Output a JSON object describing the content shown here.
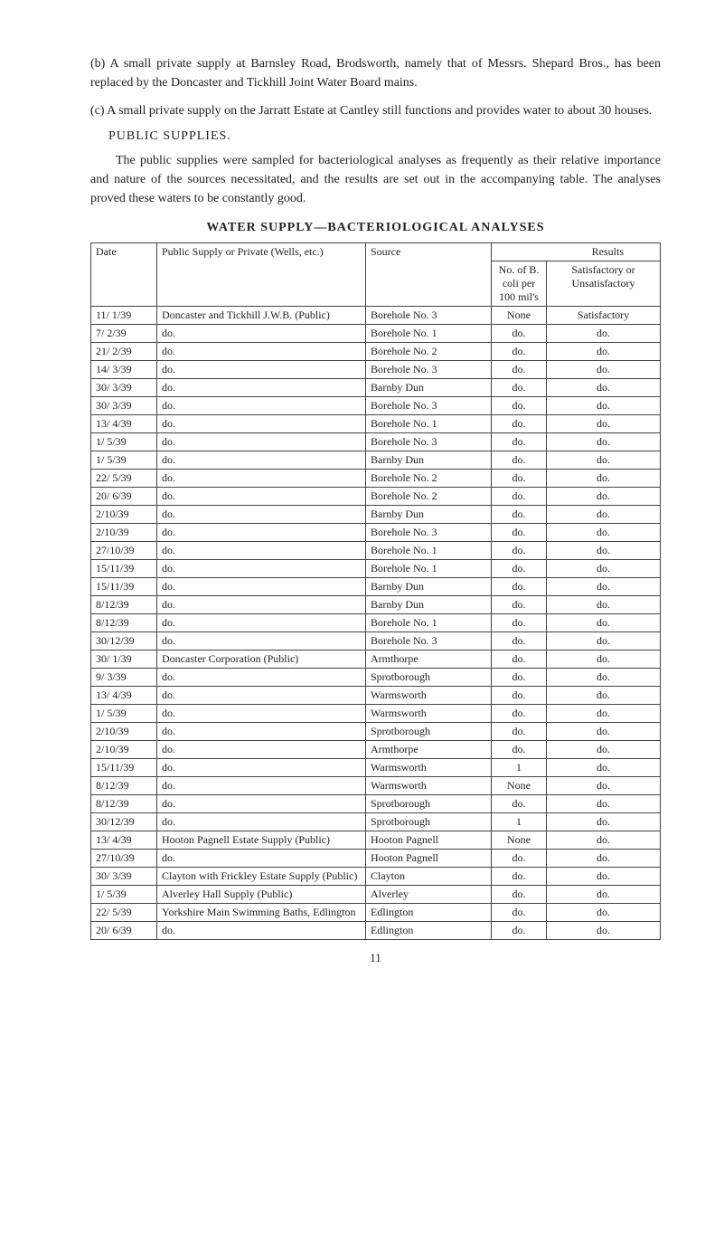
{
  "paragraphs": {
    "b": "(b) A small private supply at Barnsley Road, Brodsworth, namely that of Messrs. Shepard Bros., has been replaced by the Doncaster and Tickhill Joint Water Board mains.",
    "c": "(c) A small private supply on the Jarratt Estate at Cantley still functions and provides water to about 30 houses.",
    "public_head": "PUBLIC SUPPLIES.",
    "public_body": "The public supplies were sampled for bacteriological analyses as frequently as their relative importance and nature of the sources necessitated, and the results are set out in the accompanying table. The analyses proved these waters to be constantly good."
  },
  "table": {
    "title": "WATER SUPPLY—BACTERIOLOGICAL ANALYSES",
    "headers": {
      "date": "Date",
      "supply": "Public Supply or Private (Wells, etc.)",
      "source": "Source",
      "results": "Results",
      "no": "No. of B. coli per 100 mil's",
      "sat": "Satisfactory or Unsatisfactory"
    },
    "rows": [
      {
        "date": "11/ 1/39",
        "supply": "Doncaster and Tickhill J.W.B. (Public)",
        "source": "Borehole No. 3",
        "no": "None",
        "sat": "Satisfactory"
      },
      {
        "date": "7/ 2/39",
        "supply": "do.",
        "source": "Borehole No. 1",
        "no": "do.",
        "sat": "do."
      },
      {
        "date": "21/ 2/39",
        "supply": "do.",
        "source": "Borehole No. 2",
        "no": "do.",
        "sat": "do."
      },
      {
        "date": "14/ 3/39",
        "supply": "do.",
        "source": "Borehole No. 3",
        "no": "do.",
        "sat": "do."
      },
      {
        "date": "30/ 3/39",
        "supply": "do.",
        "source": "Barnby Dun",
        "no": "do.",
        "sat": "do."
      },
      {
        "date": "30/ 3/39",
        "supply": "do.",
        "source": "Borehole No. 3",
        "no": "do.",
        "sat": "do."
      },
      {
        "date": "13/ 4/39",
        "supply": "do.",
        "source": "Borehole No. 1",
        "no": "do.",
        "sat": "do."
      },
      {
        "date": "1/ 5/39",
        "supply": "do.",
        "source": "Borehole No. 3",
        "no": "do.",
        "sat": "do."
      },
      {
        "date": "1/ 5/39",
        "supply": "do.",
        "source": "Barnby Dun",
        "no": "do.",
        "sat": "do."
      },
      {
        "date": "22/ 5/39",
        "supply": "do.",
        "source": "Borehole No. 2",
        "no": "do.",
        "sat": "do."
      },
      {
        "date": "20/ 6/39",
        "supply": "do.",
        "source": "Borehole No. 2",
        "no": "do.",
        "sat": "do."
      },
      {
        "date": "2/10/39",
        "supply": "do.",
        "source": "Barnby Dun",
        "no": "do.",
        "sat": "do."
      },
      {
        "date": "2/10/39",
        "supply": "do.",
        "source": "Borehole No. 3",
        "no": "do.",
        "sat": "do."
      },
      {
        "date": "27/10/39",
        "supply": "do.",
        "source": "Borehole No. 1",
        "no": "do.",
        "sat": "do."
      },
      {
        "date": "15/11/39",
        "supply": "do.",
        "source": "Borehole No. 1",
        "no": "do.",
        "sat": "do."
      },
      {
        "date": "15/11/39",
        "supply": "do.",
        "source": "Barnby Dun",
        "no": "do.",
        "sat": "do."
      },
      {
        "date": "8/12/39",
        "supply": "do.",
        "source": "Barnby Dun",
        "no": "do.",
        "sat": "do."
      },
      {
        "date": "8/12/39",
        "supply": "do.",
        "source": "Borehole No. 1",
        "no": "do.",
        "sat": "do."
      },
      {
        "date": "30/12/39",
        "supply": "do.",
        "source": "Borehole No. 3",
        "no": "do.",
        "sat": "do."
      },
      {
        "date": "30/ 1/39",
        "supply": "Doncaster Corporation (Public)",
        "source": "Armthorpe",
        "no": "do.",
        "sat": "do."
      },
      {
        "date": "9/ 3/39",
        "supply": "do.",
        "source": "Sprotborough",
        "no": "do.",
        "sat": "do."
      },
      {
        "date": "13/ 4/39",
        "supply": "do.",
        "source": "Warmsworth",
        "no": "do.",
        "sat": "do."
      },
      {
        "date": "1/ 5/39",
        "supply": "do.",
        "source": "Warmsworth",
        "no": "do.",
        "sat": "do."
      },
      {
        "date": "2/10/39",
        "supply": "do.",
        "source": "Sprotborough",
        "no": "do.",
        "sat": "do."
      },
      {
        "date": "2/10/39",
        "supply": "do.",
        "source": "Armthorpe",
        "no": "do.",
        "sat": "do."
      },
      {
        "date": "15/11/39",
        "supply": "do.",
        "source": "Warmsworth",
        "no": "1",
        "sat": "do."
      },
      {
        "date": "8/12/39",
        "supply": "do.",
        "source": "Warmsworth",
        "no": "None",
        "sat": "do."
      },
      {
        "date": "8/12/39",
        "supply": "do.",
        "source": "Sprotborough",
        "no": "do.",
        "sat": "do."
      },
      {
        "date": "30/12/39",
        "supply": "do.",
        "source": "Sprotborough",
        "no": "1",
        "sat": "do."
      },
      {
        "date": "13/ 4/39",
        "supply": "Hooton Pagnell Estate Supply (Public)",
        "source": "Hooton Pagnell",
        "no": "None",
        "sat": "do."
      },
      {
        "date": "27/10/39",
        "supply": "do.",
        "source": "Hooton Pagnell",
        "no": "do.",
        "sat": "do."
      },
      {
        "date": "30/ 3/39",
        "supply": "Clayton with Frickley Estate Supply (Public)",
        "source": "Clayton",
        "no": "do.",
        "sat": "do."
      },
      {
        "date": "1/ 5/39",
        "supply": "Alverley Hall Supply (Public)",
        "source": "Alverley",
        "no": "do.",
        "sat": "do."
      },
      {
        "date": "22/ 5/39",
        "supply": "Yorkshire Main Swimming Baths, Edlington",
        "source": "Edlington",
        "no": "do.",
        "sat": "do."
      },
      {
        "date": "20/ 6/39",
        "supply": "do.",
        "source": "Edlington",
        "no": "do.",
        "sat": "do."
      }
    ]
  },
  "page_number": "11"
}
